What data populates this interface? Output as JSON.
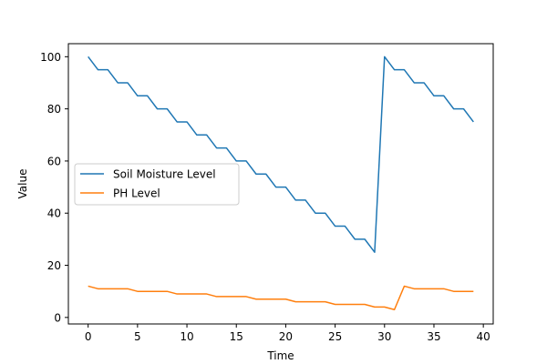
{
  "chart_data": {
    "type": "line",
    "xlabel": "Time",
    "ylabel": "Value",
    "xlim": [
      -2,
      41
    ],
    "ylim": [
      -2.5,
      105
    ],
    "xticks": [
      0,
      5,
      10,
      15,
      20,
      25,
      30,
      35,
      40
    ],
    "yticks": [
      0,
      20,
      40,
      60,
      80,
      100
    ],
    "grid": false,
    "legend_placement": "center-left",
    "x": [
      0,
      1,
      2,
      3,
      4,
      5,
      6,
      7,
      8,
      9,
      10,
      11,
      12,
      13,
      14,
      15,
      16,
      17,
      18,
      19,
      20,
      21,
      22,
      23,
      24,
      25,
      26,
      27,
      28,
      29,
      30,
      31,
      32,
      33,
      34,
      35,
      36,
      37,
      38,
      39
    ],
    "series": [
      {
        "name": "Soil Moisture Level",
        "color": "#1f77b4",
        "values": [
          100,
          95,
          95,
          90,
          90,
          85,
          85,
          80,
          80,
          75,
          75,
          70,
          70,
          65,
          65,
          60,
          60,
          55,
          55,
          50,
          50,
          45,
          45,
          40,
          40,
          35,
          35,
          30,
          30,
          25,
          100,
          95,
          95,
          90,
          90,
          85,
          85,
          80,
          80,
          75
        ]
      },
      {
        "name": "PH Level",
        "color": "#ff7f0e",
        "values": [
          12,
          11,
          11,
          11,
          11,
          10,
          10,
          10,
          10,
          9,
          9,
          9,
          9,
          8,
          8,
          8,
          8,
          7,
          7,
          7,
          7,
          6,
          6,
          6,
          6,
          5,
          5,
          5,
          5,
          4,
          4,
          3,
          12,
          11,
          11,
          11,
          11,
          10,
          10,
          10
        ]
      }
    ]
  }
}
